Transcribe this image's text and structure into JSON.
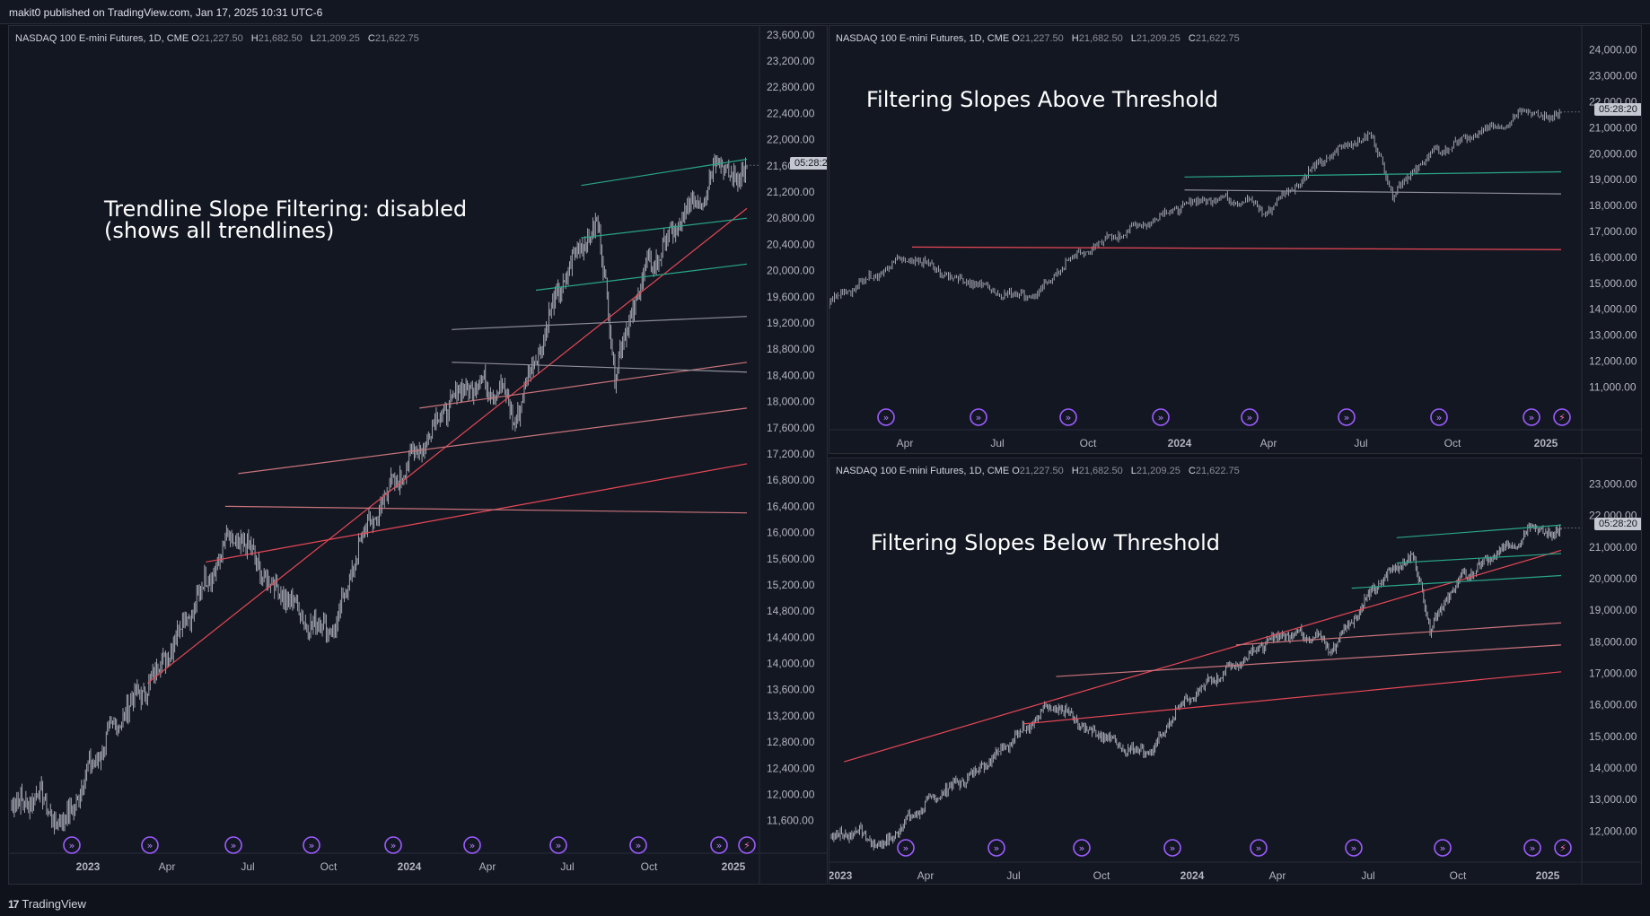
{
  "header": {
    "text": "makit0 published on TradingView.com, Jan 17, 2025 10:31 UTC-6"
  },
  "footer": {
    "brand": "TradingView",
    "mark": "17"
  },
  "legend": {
    "symbol": "NASDAQ 100 E-mini Futures, 1D, CME",
    "o_label": "O",
    "o": "21,227.50",
    "h_label": "H",
    "h": "21,682.50",
    "l_label": "L",
    "l": "21,209.25",
    "c_label": "C",
    "c": "21,622.75"
  },
  "countdown": "05:28:20",
  "colors": {
    "background": "#131722",
    "candles": "#b2b5be",
    "red_line": "#e84855",
    "green_line": "#2aa68a",
    "pink_line": "#c9747b",
    "gray_line": "#8f8f99",
    "event": "#9c5cff"
  },
  "panels": {
    "left": {
      "title": "Trendline Slope Filtering: disabled\n(shows all trendlines)",
      "y_ticks": [
        "23,600.00",
        "23,200.00",
        "22,800.00",
        "22,400.00",
        "22,000.00",
        "21,600.00",
        "21,200.00",
        "20,800.00",
        "20,400.00",
        "20,000.00",
        "19,600.00",
        "19,200.00",
        "18,800.00",
        "18,400.00",
        "18,000.00",
        "17,600.00",
        "17,200.00",
        "16,800.00",
        "16,400.00",
        "16,000.00",
        "15,600.00",
        "15,200.00",
        "14,800.00",
        "14,400.00",
        "14,000.00",
        "13,600.00",
        "13,200.00",
        "12,800.00",
        "12,400.00",
        "12,000.00",
        "11,600.00"
      ],
      "x_ticks": [
        "2023",
        "Apr",
        "Jul",
        "Oct",
        "2024",
        "Apr",
        "Jul",
        "Oct",
        "2025"
      ]
    },
    "top_right": {
      "title": "Filtering Slopes Above Threshold",
      "y_ticks": [
        "24,000.00",
        "23,000.00",
        "22,000.00",
        "21,000.00",
        "20,000.00",
        "19,000.00",
        "18,000.00",
        "17,000.00",
        "16,000.00",
        "15,000.00",
        "14,000.00",
        "13,000.00",
        "12,000.00",
        "11,000.00"
      ],
      "x_ticks": [
        "Apr",
        "Jul",
        "Oct",
        "2024",
        "Apr",
        "Jul",
        "Oct",
        "2025"
      ]
    },
    "bottom_right": {
      "title": "Filtering Slopes Below Threshold",
      "y_ticks": [
        "23,000.00",
        "22,000.00",
        "21,000.00",
        "20,000.00",
        "19,000.00",
        "18,000.00",
        "17,000.00",
        "16,000.00",
        "15,000.00",
        "14,000.00",
        "13,000.00",
        "12,000.00"
      ],
      "x_ticks": [
        "2023",
        "Apr",
        "Jul",
        "Oct",
        "2024",
        "Apr",
        "Jul",
        "Oct",
        "2025"
      ]
    }
  },
  "icons": {
    "event": "dividend-arrow-icon",
    "flash": "lightning-icon"
  }
}
